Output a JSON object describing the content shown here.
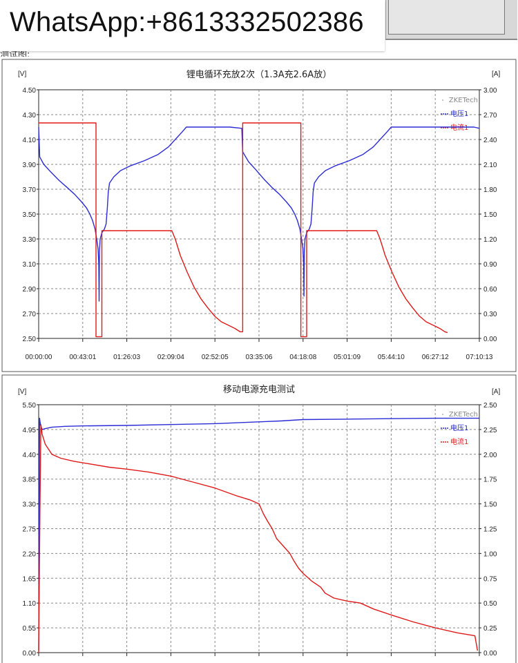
{
  "watermark": {
    "text": "WhatsApp:+8613332502386"
  },
  "page": {
    "cut_text": "测试图:"
  },
  "chart_data": [
    {
      "type": "line",
      "title": "锂电循环充放2次（1.3A充2.6A放）",
      "watermark": "ZKETech",
      "y_unit_left": "[V]",
      "y_unit_right": "[A]",
      "ylim_left": [
        2.5,
        4.5
      ],
      "ylim_right": [
        0,
        3
      ],
      "x_range": [
        0,
        25813
      ],
      "y_ticks_left": [
        "4.50",
        "4.30",
        "4.10",
        "3.90",
        "3.70",
        "3.50",
        "3.30",
        "3.10",
        "2.90",
        "2.70",
        "2.50"
      ],
      "y_ticks_right": [
        "3.00",
        "2.70",
        "2.40",
        "2.10",
        "1.80",
        "1.50",
        "1.20",
        "0.90",
        "0.60",
        "0.30",
        "0.00"
      ],
      "x_ticks": [
        "00:00:00",
        "00:43:01",
        "01:26:03",
        "02:09:04",
        "02:52:05",
        "03:35:06",
        "04:18:08",
        "05:01:09",
        "05:44:10",
        "06:27:12",
        "07:10:13"
      ],
      "series": [
        {
          "name": "电压1",
          "color": "#2b2bd6",
          "axis": "left",
          "points": [
            [
              0,
              4.2
            ],
            [
              60,
              3.96
            ],
            [
              300,
              3.9
            ],
            [
              700,
              3.84
            ],
            [
              1200,
              3.77
            ],
            [
              1700,
              3.71
            ],
            [
              2100,
              3.66
            ],
            [
              2500,
              3.6
            ],
            [
              2800,
              3.55
            ],
            [
              3000,
              3.5
            ],
            [
              3150,
              3.45
            ],
            [
              3300,
              3.38
            ],
            [
              3400,
              3.3
            ],
            [
              3480,
              3.22
            ],
            [
              3520,
              3.1
            ],
            [
              3540,
              2.8
            ],
            [
              3560,
              3.2
            ],
            [
              3600,
              3.3
            ],
            [
              3700,
              3.35
            ],
            [
              3850,
              3.38
            ],
            [
              3950,
              3.42
            ],
            [
              4020,
              3.55
            ],
            [
              4080,
              3.68
            ],
            [
              4150,
              3.75
            ],
            [
              4400,
              3.8
            ],
            [
              4800,
              3.85
            ],
            [
              5400,
              3.89
            ],
            [
              6200,
              3.93
            ],
            [
              7000,
              3.98
            ],
            [
              7600,
              4.04
            ],
            [
              8000,
              4.1
            ],
            [
              8400,
              4.16
            ],
            [
              8650,
              4.2
            ],
            [
              11200,
              4.2
            ],
            [
              11900,
              4.19
            ],
            [
              11950,
              4.0
            ],
            [
              12000,
              3.99
            ],
            [
              12300,
              3.92
            ],
            [
              12700,
              3.86
            ],
            [
              13200,
              3.78
            ],
            [
              13700,
              3.71
            ],
            [
              14100,
              3.66
            ],
            [
              14500,
              3.6
            ],
            [
              14800,
              3.55
            ],
            [
              15000,
              3.5
            ],
            [
              15150,
              3.45
            ],
            [
              15300,
              3.38
            ],
            [
              15400,
              3.3
            ],
            [
              15480,
              3.22
            ],
            [
              15520,
              3.1
            ],
            [
              15540,
              2.84
            ],
            [
              15560,
              3.2
            ],
            [
              15600,
              3.3
            ],
            [
              15700,
              3.35
            ],
            [
              15850,
              3.38
            ],
            [
              15950,
              3.42
            ],
            [
              16020,
              3.55
            ],
            [
              16080,
              3.68
            ],
            [
              16150,
              3.75
            ],
            [
              16400,
              3.8
            ],
            [
              16800,
              3.85
            ],
            [
              17400,
              3.89
            ],
            [
              18200,
              3.93
            ],
            [
              19000,
              3.98
            ],
            [
              19600,
              4.04
            ],
            [
              20000,
              4.1
            ],
            [
              20400,
              4.16
            ],
            [
              20650,
              4.2
            ],
            [
              25500,
              4.2
            ],
            [
              25813,
              4.19
            ]
          ]
        },
        {
          "name": "电流1",
          "color": "#e01818",
          "axis": "right",
          "points": [
            [
              0,
              2.6
            ],
            [
              3360,
              2.6
            ],
            [
              3360,
              0.02
            ],
            [
              3700,
              0.02
            ],
            [
              3700,
              1.3
            ],
            [
              7800,
              1.3
            ],
            [
              8000,
              1.2
            ],
            [
              8300,
              1.0
            ],
            [
              8700,
              0.8
            ],
            [
              9100,
              0.62
            ],
            [
              9500,
              0.48
            ],
            [
              9900,
              0.37
            ],
            [
              10300,
              0.27
            ],
            [
              10700,
              0.2
            ],
            [
              11100,
              0.16
            ],
            [
              11500,
              0.12
            ],
            [
              11800,
              0.08
            ],
            [
              11950,
              0.08
            ],
            [
              11950,
              2.6
            ],
            [
              15360,
              2.6
            ],
            [
              15360,
              0.02
            ],
            [
              15700,
              0.02
            ],
            [
              15700,
              1.3
            ],
            [
              19800,
              1.3
            ],
            [
              20000,
              1.2
            ],
            [
              20300,
              1.0
            ],
            [
              20700,
              0.8
            ],
            [
              21100,
              0.62
            ],
            [
              21500,
              0.48
            ],
            [
              21900,
              0.37
            ],
            [
              22300,
              0.27
            ],
            [
              22700,
              0.2
            ],
            [
              23100,
              0.16
            ],
            [
              23500,
              0.12
            ],
            [
              23800,
              0.08
            ],
            [
              23950,
              0.07
            ]
          ]
        }
      ]
    },
    {
      "type": "line",
      "title": "移动电源充电测试",
      "watermark": "ZKETech",
      "y_unit_left": "[V]",
      "y_unit_right": "[A]",
      "ylim_left": [
        0,
        5.5
      ],
      "ylim_right": [
        0,
        2.5
      ],
      "x_range": [
        0,
        100
      ],
      "y_ticks_left": [
        "5.50",
        "4.95",
        "4.40",
        "3.85",
        "3.30",
        "2.75",
        "2.20",
        "1.65",
        "1.10",
        "0.55",
        "0.00"
      ],
      "y_ticks_right": [
        "2.50",
        "2.25",
        "2.00",
        "1.75",
        "1.50",
        "1.25",
        "1.00",
        "0.75",
        "0.50",
        "0.25",
        "0.00"
      ],
      "x_ticks": [],
      "series": [
        {
          "name": "电压1",
          "color": "#2b2bd6",
          "axis": "left",
          "points": [
            [
              0,
              0.05
            ],
            [
              0.2,
              5.2
            ],
            [
              0.4,
              5.05
            ],
            [
              0.8,
              4.95
            ],
            [
              1.5,
              4.97
            ],
            [
              3,
              5.0
            ],
            [
              6,
              5.02
            ],
            [
              10,
              5.03
            ],
            [
              20,
              5.04
            ],
            [
              30,
              5.06
            ],
            [
              40,
              5.08
            ],
            [
              50,
              5.12
            ],
            [
              55,
              5.14
            ],
            [
              60,
              5.17
            ],
            [
              70,
              5.18
            ],
            [
              80,
              5.19
            ],
            [
              90,
              5.2
            ],
            [
              100,
              5.2
            ]
          ]
        },
        {
          "name": "电流1",
          "color": "#e01818",
          "axis": "right",
          "points": [
            [
              0,
              0
            ],
            [
              0.3,
              1.5
            ],
            [
              0.5,
              2.3
            ],
            [
              0.8,
              2.2
            ],
            [
              1.5,
              2.1
            ],
            [
              3,
              2.0
            ],
            [
              5,
              1.96
            ],
            [
              8,
              1.93
            ],
            [
              12,
              1.9
            ],
            [
              16,
              1.87
            ],
            [
              20,
              1.85
            ],
            [
              25,
              1.82
            ],
            [
              30,
              1.78
            ],
            [
              35,
              1.72
            ],
            [
              40,
              1.66
            ],
            [
              45,
              1.58
            ],
            [
              48,
              1.54
            ],
            [
              50,
              1.5
            ],
            [
              51,
              1.4
            ],
            [
              52,
              1.32
            ],
            [
              53,
              1.25
            ],
            [
              54,
              1.15
            ],
            [
              55,
              1.1
            ],
            [
              57,
              1.0
            ],
            [
              58,
              0.92
            ],
            [
              59,
              0.85
            ],
            [
              60,
              0.8
            ],
            [
              62,
              0.72
            ],
            [
              64,
              0.66
            ],
            [
              65,
              0.6
            ],
            [
              67,
              0.55
            ],
            [
              70,
              0.52
            ],
            [
              73,
              0.5
            ],
            [
              76,
              0.44
            ],
            [
              80,
              0.38
            ],
            [
              85,
              0.31
            ],
            [
              90,
              0.25
            ],
            [
              95,
              0.2
            ],
            [
              99,
              0.17
            ],
            [
              99.6,
              0.02
            ]
          ]
        }
      ]
    }
  ]
}
